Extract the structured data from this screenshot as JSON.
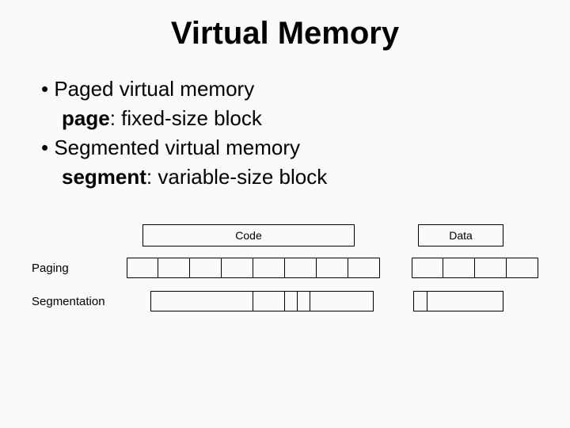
{
  "title": "Virtual Memory",
  "bullets": {
    "b1": "Paged virtual memory",
    "b1_term": "page",
    "b1_def": ": fixed-size block",
    "b2": "Segmented virtual memory",
    "b2_term": "segment",
    "b2_def": ": variable-size block"
  },
  "diagram": {
    "label_paging": "Paging",
    "label_segmentation": "Segmentation",
    "code_label": "Code",
    "data_label": "Data",
    "top_row": {
      "left_gap": 20,
      "code_box_width": 268,
      "mid_gap": 80,
      "data_box_width": 108
    },
    "paging_row": {
      "left_gap": 0,
      "code_cells": [
        40,
        40,
        40,
        40,
        40,
        40,
        40,
        40
      ],
      "mid_gap": 40,
      "data_cells": [
        40,
        40,
        40,
        40
      ]
    },
    "segmentation_row": {
      "left_gap": 30,
      "code_cells": [
        130,
        40,
        16,
        16,
        80
      ],
      "mid_gap": 50,
      "data_cells": [
        18,
        96
      ]
    },
    "colors": {
      "border": "#000000",
      "background": "#fafafa"
    }
  }
}
